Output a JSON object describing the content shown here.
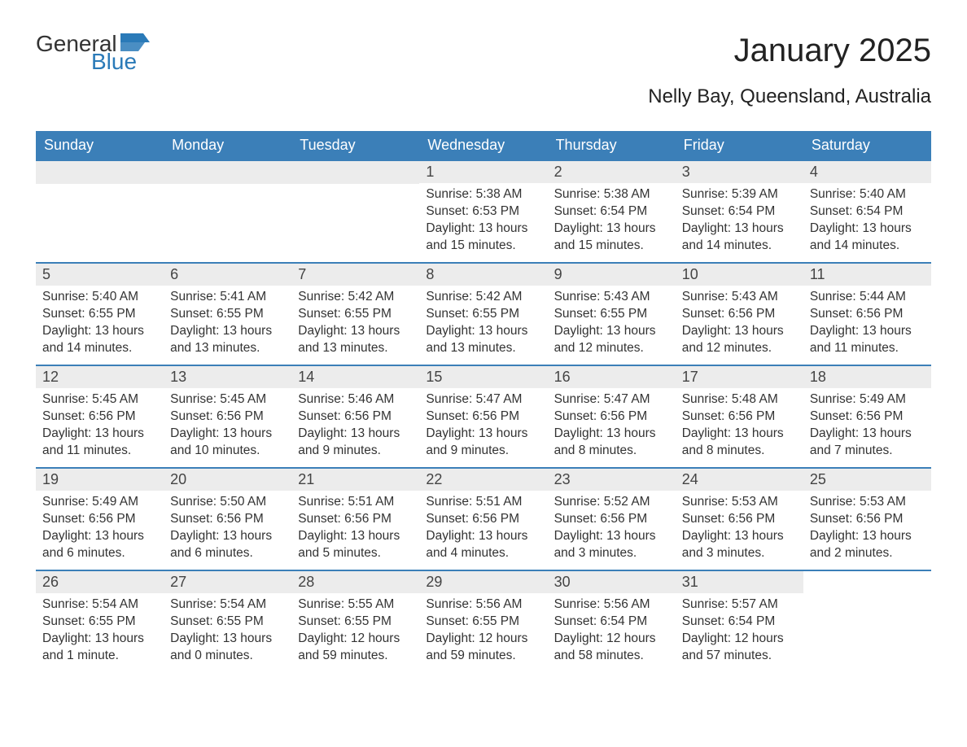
{
  "logo": {
    "word1": "General",
    "word2": "Blue"
  },
  "title": "January 2025",
  "location": "Nelly Bay, Queensland, Australia",
  "weekdays": [
    "Sunday",
    "Monday",
    "Tuesday",
    "Wednesday",
    "Thursday",
    "Friday",
    "Saturday"
  ],
  "colors": {
    "header_bg": "#3b7fb8",
    "header_text": "#ffffff",
    "daynum_bg": "#ececec",
    "row_border": "#3b7fb8",
    "logo_blue": "#2a7ab8",
    "text": "#333333",
    "background": "#ffffff"
  },
  "weeks": [
    [
      null,
      null,
      null,
      {
        "n": "1",
        "sunrise": "Sunrise: 5:38 AM",
        "sunset": "Sunset: 6:53 PM",
        "d1": "Daylight: 13 hours",
        "d2": "and 15 minutes."
      },
      {
        "n": "2",
        "sunrise": "Sunrise: 5:38 AM",
        "sunset": "Sunset: 6:54 PM",
        "d1": "Daylight: 13 hours",
        "d2": "and 15 minutes."
      },
      {
        "n": "3",
        "sunrise": "Sunrise: 5:39 AM",
        "sunset": "Sunset: 6:54 PM",
        "d1": "Daylight: 13 hours",
        "d2": "and 14 minutes."
      },
      {
        "n": "4",
        "sunrise": "Sunrise: 5:40 AM",
        "sunset": "Sunset: 6:54 PM",
        "d1": "Daylight: 13 hours",
        "d2": "and 14 minutes."
      }
    ],
    [
      {
        "n": "5",
        "sunrise": "Sunrise: 5:40 AM",
        "sunset": "Sunset: 6:55 PM",
        "d1": "Daylight: 13 hours",
        "d2": "and 14 minutes."
      },
      {
        "n": "6",
        "sunrise": "Sunrise: 5:41 AM",
        "sunset": "Sunset: 6:55 PM",
        "d1": "Daylight: 13 hours",
        "d2": "and 13 minutes."
      },
      {
        "n": "7",
        "sunrise": "Sunrise: 5:42 AM",
        "sunset": "Sunset: 6:55 PM",
        "d1": "Daylight: 13 hours",
        "d2": "and 13 minutes."
      },
      {
        "n": "8",
        "sunrise": "Sunrise: 5:42 AM",
        "sunset": "Sunset: 6:55 PM",
        "d1": "Daylight: 13 hours",
        "d2": "and 13 minutes."
      },
      {
        "n": "9",
        "sunrise": "Sunrise: 5:43 AM",
        "sunset": "Sunset: 6:55 PM",
        "d1": "Daylight: 13 hours",
        "d2": "and 12 minutes."
      },
      {
        "n": "10",
        "sunrise": "Sunrise: 5:43 AM",
        "sunset": "Sunset: 6:56 PM",
        "d1": "Daylight: 13 hours",
        "d2": "and 12 minutes."
      },
      {
        "n": "11",
        "sunrise": "Sunrise: 5:44 AM",
        "sunset": "Sunset: 6:56 PM",
        "d1": "Daylight: 13 hours",
        "d2": "and 11 minutes."
      }
    ],
    [
      {
        "n": "12",
        "sunrise": "Sunrise: 5:45 AM",
        "sunset": "Sunset: 6:56 PM",
        "d1": "Daylight: 13 hours",
        "d2": "and 11 minutes."
      },
      {
        "n": "13",
        "sunrise": "Sunrise: 5:45 AM",
        "sunset": "Sunset: 6:56 PM",
        "d1": "Daylight: 13 hours",
        "d2": "and 10 minutes."
      },
      {
        "n": "14",
        "sunrise": "Sunrise: 5:46 AM",
        "sunset": "Sunset: 6:56 PM",
        "d1": "Daylight: 13 hours",
        "d2": "and 9 minutes."
      },
      {
        "n": "15",
        "sunrise": "Sunrise: 5:47 AM",
        "sunset": "Sunset: 6:56 PM",
        "d1": "Daylight: 13 hours",
        "d2": "and 9 minutes."
      },
      {
        "n": "16",
        "sunrise": "Sunrise: 5:47 AM",
        "sunset": "Sunset: 6:56 PM",
        "d1": "Daylight: 13 hours",
        "d2": "and 8 minutes."
      },
      {
        "n": "17",
        "sunrise": "Sunrise: 5:48 AM",
        "sunset": "Sunset: 6:56 PM",
        "d1": "Daylight: 13 hours",
        "d2": "and 8 minutes."
      },
      {
        "n": "18",
        "sunrise": "Sunrise: 5:49 AM",
        "sunset": "Sunset: 6:56 PM",
        "d1": "Daylight: 13 hours",
        "d2": "and 7 minutes."
      }
    ],
    [
      {
        "n": "19",
        "sunrise": "Sunrise: 5:49 AM",
        "sunset": "Sunset: 6:56 PM",
        "d1": "Daylight: 13 hours",
        "d2": "and 6 minutes."
      },
      {
        "n": "20",
        "sunrise": "Sunrise: 5:50 AM",
        "sunset": "Sunset: 6:56 PM",
        "d1": "Daylight: 13 hours",
        "d2": "and 6 minutes."
      },
      {
        "n": "21",
        "sunrise": "Sunrise: 5:51 AM",
        "sunset": "Sunset: 6:56 PM",
        "d1": "Daylight: 13 hours",
        "d2": "and 5 minutes."
      },
      {
        "n": "22",
        "sunrise": "Sunrise: 5:51 AM",
        "sunset": "Sunset: 6:56 PM",
        "d1": "Daylight: 13 hours",
        "d2": "and 4 minutes."
      },
      {
        "n": "23",
        "sunrise": "Sunrise: 5:52 AM",
        "sunset": "Sunset: 6:56 PM",
        "d1": "Daylight: 13 hours",
        "d2": "and 3 minutes."
      },
      {
        "n": "24",
        "sunrise": "Sunrise: 5:53 AM",
        "sunset": "Sunset: 6:56 PM",
        "d1": "Daylight: 13 hours",
        "d2": "and 3 minutes."
      },
      {
        "n": "25",
        "sunrise": "Sunrise: 5:53 AM",
        "sunset": "Sunset: 6:56 PM",
        "d1": "Daylight: 13 hours",
        "d2": "and 2 minutes."
      }
    ],
    [
      {
        "n": "26",
        "sunrise": "Sunrise: 5:54 AM",
        "sunset": "Sunset: 6:55 PM",
        "d1": "Daylight: 13 hours",
        "d2": "and 1 minute."
      },
      {
        "n": "27",
        "sunrise": "Sunrise: 5:54 AM",
        "sunset": "Sunset: 6:55 PM",
        "d1": "Daylight: 13 hours",
        "d2": "and 0 minutes."
      },
      {
        "n": "28",
        "sunrise": "Sunrise: 5:55 AM",
        "sunset": "Sunset: 6:55 PM",
        "d1": "Daylight: 12 hours",
        "d2": "and 59 minutes."
      },
      {
        "n": "29",
        "sunrise": "Sunrise: 5:56 AM",
        "sunset": "Sunset: 6:55 PM",
        "d1": "Daylight: 12 hours",
        "d2": "and 59 minutes."
      },
      {
        "n": "30",
        "sunrise": "Sunrise: 5:56 AM",
        "sunset": "Sunset: 6:54 PM",
        "d1": "Daylight: 12 hours",
        "d2": "and 58 minutes."
      },
      {
        "n": "31",
        "sunrise": "Sunrise: 5:57 AM",
        "sunset": "Sunset: 6:54 PM",
        "d1": "Daylight: 12 hours",
        "d2": "and 57 minutes."
      },
      null
    ]
  ]
}
